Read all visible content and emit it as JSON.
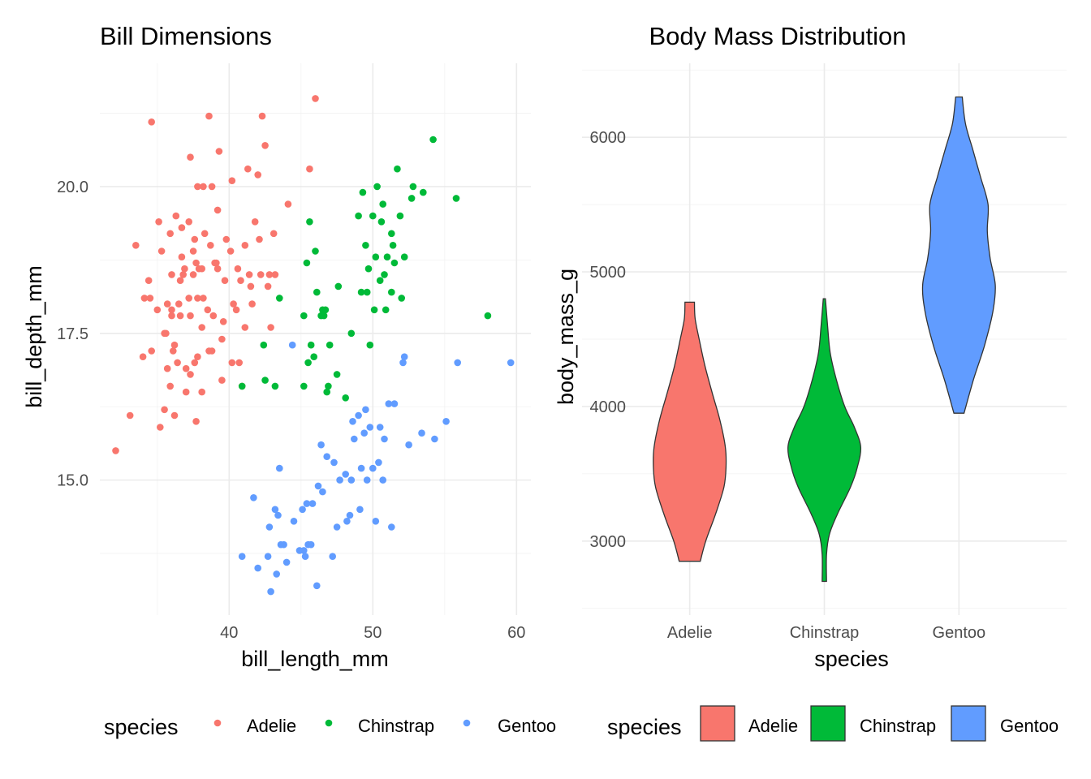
{
  "chart_data": [
    {
      "type": "scatter",
      "title": "Bill Dimensions",
      "xlabel": "bill_length_mm",
      "ylabel": "bill_depth_mm",
      "xlim": [
        31,
        61
      ],
      "ylim": [
        12.7,
        22.1
      ],
      "x_ticks": [
        40,
        50,
        60
      ],
      "x_tick_labels": [
        "40",
        "50",
        "60"
      ],
      "y_ticks": [
        15,
        17.5,
        20
      ],
      "y_tick_labels": [
        "15.0",
        "17.5",
        "20.0"
      ],
      "grid": true,
      "legend": {
        "title": "species",
        "position": "bottom"
      },
      "series": [
        {
          "name": "Adelie",
          "color": "#F8766D",
          "points": [
            [
              32.1,
              15.5
            ],
            [
              33.1,
              16.1
            ],
            [
              33.5,
              19.0
            ],
            [
              34.0,
              17.1
            ],
            [
              34.1,
              18.1
            ],
            [
              34.4,
              18.4
            ],
            [
              34.5,
              18.1
            ],
            [
              34.6,
              21.1
            ],
            [
              34.6,
              17.2
            ],
            [
              35.0,
              17.9
            ],
            [
              35.1,
              19.4
            ],
            [
              35.2,
              15.9
            ],
            [
              35.3,
              18.9
            ],
            [
              35.5,
              16.2
            ],
            [
              35.5,
              17.5
            ],
            [
              35.6,
              17.5
            ],
            [
              35.7,
              18.0
            ],
            [
              35.7,
              16.9
            ],
            [
              35.9,
              16.6
            ],
            [
              35.9,
              19.2
            ],
            [
              36.0,
              17.9
            ],
            [
              36.0,
              18.5
            ],
            [
              36.0,
              17.8
            ],
            [
              36.1,
              17.2
            ],
            [
              36.2,
              17.3
            ],
            [
              36.2,
              16.1
            ],
            [
              36.3,
              19.5
            ],
            [
              36.4,
              17.0
            ],
            [
              36.5,
              18.0
            ],
            [
              36.6,
              17.8
            ],
            [
              36.6,
              18.4
            ],
            [
              36.7,
              19.3
            ],
            [
              36.7,
              18.8
            ],
            [
              36.8,
              18.5
            ],
            [
              36.9,
              18.6
            ],
            [
              37.0,
              16.9
            ],
            [
              37.0,
              16.5
            ],
            [
              37.2,
              18.1
            ],
            [
              37.2,
              19.4
            ],
            [
              37.3,
              20.5
            ],
            [
              37.3,
              17.8
            ],
            [
              37.3,
              16.8
            ],
            [
              37.5,
              18.9
            ],
            [
              37.5,
              18.5
            ],
            [
              37.6,
              19.1
            ],
            [
              37.6,
              17.0
            ],
            [
              37.7,
              18.7
            ],
            [
              37.7,
              16.0
            ],
            [
              37.8,
              18.1
            ],
            [
              37.8,
              17.1
            ],
            [
              37.8,
              20.0
            ],
            [
              37.9,
              18.6
            ],
            [
              38.1,
              17.6
            ],
            [
              38.1,
              18.6
            ],
            [
              38.1,
              16.5
            ],
            [
              38.2,
              18.1
            ],
            [
              38.2,
              20.0
            ],
            [
              38.3,
              19.2
            ],
            [
              38.5,
              17.9
            ],
            [
              38.6,
              21.2
            ],
            [
              38.6,
              17.2
            ],
            [
              38.7,
              19.0
            ],
            [
              38.8,
              17.2
            ],
            [
              38.8,
              20.0
            ],
            [
              38.9,
              17.8
            ],
            [
              39.0,
              18.7
            ],
            [
              39.1,
              18.7
            ],
            [
              39.2,
              19.6
            ],
            [
              39.2,
              18.6
            ],
            [
              39.3,
              20.6
            ],
            [
              39.5,
              17.4
            ],
            [
              39.5,
              16.7
            ],
            [
              39.6,
              17.7
            ],
            [
              39.7,
              18.4
            ],
            [
              39.8,
              19.1
            ],
            [
              40.1,
              18.9
            ],
            [
              40.2,
              17.0
            ],
            [
              40.2,
              20.1
            ],
            [
              40.3,
              18.0
            ],
            [
              40.5,
              17.9
            ],
            [
              40.6,
              18.6
            ],
            [
              40.7,
              17.0
            ],
            [
              40.8,
              18.4
            ],
            [
              40.9,
              16.6
            ],
            [
              41.1,
              17.6
            ],
            [
              41.1,
              19.0
            ],
            [
              41.3,
              20.3
            ],
            [
              41.4,
              18.5
            ],
            [
              41.5,
              18.3
            ],
            [
              41.6,
              18.0
            ],
            [
              41.8,
              19.4
            ],
            [
              42.0,
              20.2
            ],
            [
              42.1,
              19.1
            ],
            [
              42.2,
              18.5
            ],
            [
              42.3,
              21.2
            ],
            [
              42.5,
              20.7
            ],
            [
              42.7,
              18.3
            ],
            [
              42.8,
              18.5
            ],
            [
              42.9,
              17.6
            ],
            [
              43.1,
              19.2
            ],
            [
              43.2,
              18.5
            ],
            [
              44.1,
              19.7
            ],
            [
              45.6,
              20.3
            ],
            [
              46.0,
              21.5
            ]
          ]
        },
        {
          "name": "Chinstrap",
          "color": "#00BA38",
          "points": [
            [
              40.9,
              16.6
            ],
            [
              42.4,
              17.3
            ],
            [
              42.5,
              16.7
            ],
            [
              43.2,
              16.6
            ],
            [
              43.5,
              18.1
            ],
            [
              45.2,
              17.8
            ],
            [
              45.2,
              16.6
            ],
            [
              45.4,
              18.7
            ],
            [
              45.5,
              17.0
            ],
            [
              45.6,
              19.4
            ],
            [
              45.7,
              17.3
            ],
            [
              45.9,
              17.1
            ],
            [
              46.0,
              18.9
            ],
            [
              46.1,
              18.2
            ],
            [
              46.4,
              17.8
            ],
            [
              46.5,
              17.9
            ],
            [
              46.6,
              17.8
            ],
            [
              46.7,
              17.9
            ],
            [
              46.8,
              16.5
            ],
            [
              46.9,
              16.6
            ],
            [
              47.0,
              17.3
            ],
            [
              47.5,
              16.8
            ],
            [
              47.6,
              18.3
            ],
            [
              48.1,
              16.4
            ],
            [
              48.5,
              17.5
            ],
            [
              49.0,
              19.5
            ],
            [
              49.2,
              18.2
            ],
            [
              49.3,
              19.9
            ],
            [
              49.5,
              19.0
            ],
            [
              49.6,
              18.2
            ],
            [
              49.7,
              18.6
            ],
            [
              49.8,
              17.3
            ],
            [
              50.0,
              19.5
            ],
            [
              50.1,
              17.9
            ],
            [
              50.2,
              18.8
            ],
            [
              50.3,
              20.0
            ],
            [
              50.5,
              18.4
            ],
            [
              50.6,
              19.4
            ],
            [
              50.7,
              19.7
            ],
            [
              50.8,
              18.5
            ],
            [
              50.9,
              17.9
            ],
            [
              51.0,
              18.8
            ],
            [
              51.3,
              18.2
            ],
            [
              51.3,
              19.2
            ],
            [
              51.4,
              19.0
            ],
            [
              51.5,
              18.7
            ],
            [
              51.7,
              20.3
            ],
            [
              51.9,
              19.5
            ],
            [
              52.0,
              18.1
            ],
            [
              52.2,
              18.8
            ],
            [
              52.7,
              19.8
            ],
            [
              52.8,
              20.0
            ],
            [
              53.5,
              19.9
            ],
            [
              54.2,
              20.8
            ],
            [
              55.8,
              19.8
            ],
            [
              58.0,
              17.8
            ]
          ]
        },
        {
          "name": "Gentoo",
          "color": "#619CFF",
          "points": [
            [
              40.9,
              13.7
            ],
            [
              41.7,
              14.7
            ],
            [
              42.0,
              13.5
            ],
            [
              42.7,
              13.7
            ],
            [
              42.8,
              14.2
            ],
            [
              42.9,
              13.1
            ],
            [
              43.2,
              14.5
            ],
            [
              43.3,
              13.4
            ],
            [
              43.4,
              14.4
            ],
            [
              43.5,
              15.2
            ],
            [
              43.6,
              13.9
            ],
            [
              43.8,
              13.9
            ],
            [
              44.0,
              13.6
            ],
            [
              44.4,
              17.3
            ],
            [
              44.5,
              14.3
            ],
            [
              44.9,
              13.8
            ],
            [
              45.1,
              14.5
            ],
            [
              45.2,
              13.8
            ],
            [
              45.3,
              13.7
            ],
            [
              45.4,
              14.6
            ],
            [
              45.5,
              13.9
            ],
            [
              45.7,
              13.9
            ],
            [
              45.8,
              14.6
            ],
            [
              46.1,
              13.2
            ],
            [
              46.2,
              14.9
            ],
            [
              46.4,
              15.6
            ],
            [
              46.5,
              14.8
            ],
            [
              46.8,
              15.4
            ],
            [
              47.2,
              13.7
            ],
            [
              47.3,
              15.3
            ],
            [
              47.5,
              14.2
            ],
            [
              47.7,
              15.0
            ],
            [
              48.1,
              15.1
            ],
            [
              48.2,
              14.3
            ],
            [
              48.4,
              14.4
            ],
            [
              48.5,
              15.0
            ],
            [
              48.6,
              16.0
            ],
            [
              48.7,
              15.7
            ],
            [
              49.0,
              16.1
            ],
            [
              49.1,
              14.5
            ],
            [
              49.2,
              15.2
            ],
            [
              49.4,
              15.8
            ],
            [
              49.5,
              16.2
            ],
            [
              49.6,
              15.0
            ],
            [
              49.8,
              15.9
            ],
            [
              50.0,
              15.2
            ],
            [
              50.2,
              14.3
            ],
            [
              50.4,
              15.3
            ],
            [
              50.5,
              15.9
            ],
            [
              50.7,
              15.0
            ],
            [
              50.8,
              15.7
            ],
            [
              51.1,
              16.3
            ],
            [
              51.3,
              14.2
            ],
            [
              51.5,
              16.3
            ],
            [
              52.1,
              17.0
            ],
            [
              52.2,
              17.1
            ],
            [
              52.5,
              15.6
            ],
            [
              53.4,
              15.8
            ],
            [
              54.3,
              15.7
            ],
            [
              55.1,
              16.0
            ],
            [
              55.9,
              17.0
            ],
            [
              59.6,
              17.0
            ]
          ]
        }
      ]
    },
    {
      "type": "violin",
      "title": "Body Mass Distribution",
      "xlabel": "species",
      "ylabel": "body_mass_g",
      "categories": [
        "Adelie",
        "Chinstrap",
        "Gentoo"
      ],
      "ylim": [
        2450,
        6550
      ],
      "y_ticks": [
        3000,
        4000,
        5000,
        6000
      ],
      "y_tick_labels": [
        "3000",
        "4000",
        "5000",
        "6000"
      ],
      "grid": true,
      "legend": {
        "title": "species",
        "position": "bottom"
      },
      "series": [
        {
          "name": "Adelie",
          "color": "#F8766D",
          "min": 2850,
          "max": 4775,
          "profile": [
            [
              2850,
              0.29
            ],
            [
              3000,
              0.44
            ],
            [
              3200,
              0.71
            ],
            [
              3400,
              0.94
            ],
            [
              3550,
              1.0
            ],
            [
              3700,
              0.98
            ],
            [
              3900,
              0.83
            ],
            [
              4100,
              0.62
            ],
            [
              4300,
              0.42
            ],
            [
              4500,
              0.26
            ],
            [
              4650,
              0.15
            ],
            [
              4775,
              0.13
            ]
          ]
        },
        {
          "name": "Chinstrap",
          "color": "#00BA38",
          "min": 2700,
          "max": 4800,
          "profile": [
            [
              2700,
              0.06
            ],
            [
              2900,
              0.06
            ],
            [
              3050,
              0.14
            ],
            [
              3200,
              0.36
            ],
            [
              3400,
              0.72
            ],
            [
              3550,
              0.91
            ],
            [
              3700,
              1.0
            ],
            [
              3850,
              0.82
            ],
            [
              4000,
              0.56
            ],
            [
              4200,
              0.33
            ],
            [
              4400,
              0.16
            ],
            [
              4600,
              0.09
            ],
            [
              4800,
              0.03
            ]
          ]
        },
        {
          "name": "Gentoo",
          "color": "#619CFF",
          "min": 3950,
          "max": 6300,
          "profile": [
            [
              3950,
              0.14
            ],
            [
              4200,
              0.4
            ],
            [
              4450,
              0.7
            ],
            [
              4700,
              0.93
            ],
            [
              4900,
              1.0
            ],
            [
              5100,
              0.86
            ],
            [
              5300,
              0.78
            ],
            [
              5500,
              0.8
            ],
            [
              5700,
              0.6
            ],
            [
              5900,
              0.39
            ],
            [
              6100,
              0.18
            ],
            [
              6300,
              0.09
            ]
          ]
        }
      ]
    }
  ]
}
